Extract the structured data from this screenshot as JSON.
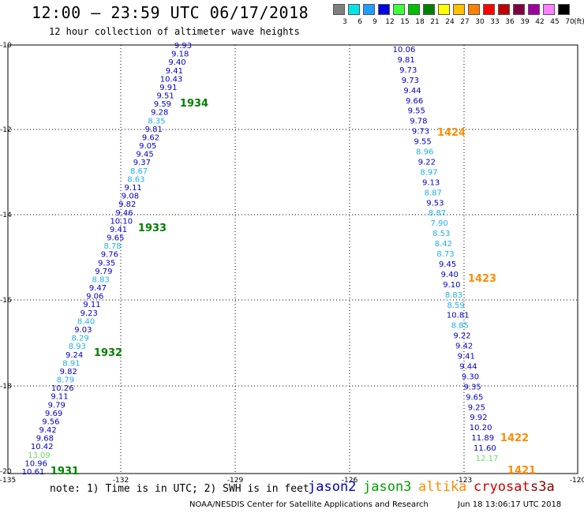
{
  "header": {
    "title": "12:00 – 23:59 UTC 06/17/2018",
    "subtitle": "12 hour collection of altimeter wave heights"
  },
  "colorbar": {
    "unit_label": "(ft)",
    "labels": [
      "3",
      "6",
      "9",
      "12",
      "15",
      "18",
      "21",
      "24",
      "27",
      "30",
      "33",
      "36",
      "39",
      "42",
      "45",
      "70"
    ],
    "colors": [
      "#7f7f7f",
      "#00e5e5",
      "#1f9fff",
      "#0000e0",
      "#3fff3f",
      "#00c000",
      "#008000",
      "#ffff00",
      "#ffc000",
      "#ff8000",
      "#ff0000",
      "#c00000",
      "#800040",
      "#a000a0",
      "#ff80ff",
      "#000000"
    ]
  },
  "axes": {
    "x_ticks": [
      "-135",
      "-132",
      "-129",
      "-126",
      "-123",
      "-120"
    ],
    "y_ticks": [
      "-10",
      "-12",
      "-14",
      "-16",
      "-18",
      "-20"
    ]
  },
  "series_colors": {
    "blue": "#0000c8",
    "cyan": "#1fb0e8",
    "green": "#008000",
    "lightgreen": "#66dd66",
    "orange": "#ff8c00"
  },
  "tracks": [
    {
      "name": "left-track",
      "points": [
        [
          "9.93",
          "blue"
        ],
        [
          "9.18",
          "blue"
        ],
        [
          "9.40",
          "blue"
        ],
        [
          "9.41",
          "blue"
        ],
        [
          "10.43",
          "blue"
        ],
        [
          "9.91",
          "blue"
        ],
        [
          "9.51",
          "blue"
        ],
        [
          "9.59",
          "blue"
        ],
        [
          "9.28",
          "blue"
        ],
        [
          "8.35",
          "cyan"
        ],
        [
          "9.81",
          "blue"
        ],
        [
          "9.62",
          "blue"
        ],
        [
          "9.05",
          "blue"
        ],
        [
          "9.45",
          "blue"
        ],
        [
          "9.37",
          "blue"
        ],
        [
          "8.67",
          "cyan"
        ],
        [
          "8.63",
          "cyan"
        ],
        [
          "9.11",
          "blue"
        ],
        [
          "9.08",
          "blue"
        ],
        [
          "9.82",
          "blue"
        ],
        [
          "9.46",
          "blue"
        ],
        [
          "10.10",
          "blue"
        ],
        [
          "9.41",
          "blue"
        ],
        [
          "9.65",
          "blue"
        ],
        [
          "8.78",
          "cyan"
        ],
        [
          "9.76",
          "blue"
        ],
        [
          "9.35",
          "blue"
        ],
        [
          "9.79",
          "blue"
        ],
        [
          "8.83",
          "cyan"
        ],
        [
          "9.47",
          "blue"
        ],
        [
          "9.06",
          "blue"
        ],
        [
          "9.11",
          "blue"
        ],
        [
          "9.23",
          "blue"
        ],
        [
          "8.40",
          "cyan"
        ],
        [
          "9.03",
          "blue"
        ],
        [
          "8.29",
          "cyan"
        ],
        [
          "8.93",
          "cyan"
        ],
        [
          "9.24",
          "blue"
        ],
        [
          "8.91",
          "cyan"
        ],
        [
          "9.82",
          "blue"
        ],
        [
          "8.79",
          "cyan"
        ],
        [
          "10.26",
          "blue"
        ],
        [
          "9.11",
          "blue"
        ],
        [
          "9.79",
          "blue"
        ],
        [
          "9.69",
          "blue"
        ],
        [
          "9.56",
          "blue"
        ],
        [
          "9.42",
          "blue"
        ],
        [
          "9.68",
          "blue"
        ],
        [
          "10.42",
          "blue"
        ],
        [
          "13.09",
          "lightgreen"
        ],
        [
          "10.96",
          "blue"
        ],
        [
          "10.61",
          "blue"
        ]
      ]
    },
    {
      "name": "right-track",
      "points": [
        [
          "10.06",
          "blue"
        ],
        [
          "9.81",
          "blue"
        ],
        [
          "9.73",
          "blue"
        ],
        [
          "9.73",
          "blue"
        ],
        [
          "9.44",
          "blue"
        ],
        [
          "9.66",
          "blue"
        ],
        [
          "9.55",
          "blue"
        ],
        [
          "9.78",
          "blue"
        ],
        [
          "9.73",
          "blue"
        ],
        [
          "9.55",
          "blue"
        ],
        [
          "8.96",
          "cyan"
        ],
        [
          "9.22",
          "blue"
        ],
        [
          "8.97",
          "cyan"
        ],
        [
          "9.13",
          "blue"
        ],
        [
          "8.87",
          "cyan"
        ],
        [
          "9.53",
          "blue"
        ],
        [
          "8.87",
          "cyan"
        ],
        [
          "7.90",
          "cyan"
        ],
        [
          "8.53",
          "cyan"
        ],
        [
          "8.42",
          "cyan"
        ],
        [
          "8.73",
          "cyan"
        ],
        [
          "9.45",
          "blue"
        ],
        [
          "9.40",
          "blue"
        ],
        [
          "9.10",
          "blue"
        ],
        [
          "8.83",
          "cyan"
        ],
        [
          "8.59",
          "cyan"
        ],
        [
          "10.81",
          "blue"
        ],
        [
          "8.85",
          "cyan"
        ],
        [
          "9.22",
          "blue"
        ],
        [
          "9.42",
          "blue"
        ],
        [
          "9.41",
          "blue"
        ],
        [
          "9.44",
          "blue"
        ],
        [
          "9.30",
          "blue"
        ],
        [
          "9.35",
          "blue"
        ],
        [
          "9.65",
          "blue"
        ],
        [
          "9.25",
          "blue"
        ],
        [
          "9.92",
          "blue"
        ],
        [
          "10.20",
          "blue"
        ],
        [
          "11.89",
          "blue"
        ],
        [
          "11.60",
          "blue"
        ],
        [
          "12.17",
          "lightgreen"
        ]
      ]
    }
  ],
  "time_labels": [
    {
      "text": "1934",
      "color": "green"
    },
    {
      "text": "1933",
      "color": "green"
    },
    {
      "text": "1932",
      "color": "green"
    },
    {
      "text": "1931",
      "color": "green"
    },
    {
      "text": "1424",
      "color": "orange"
    },
    {
      "text": "1423",
      "color": "orange"
    },
    {
      "text": "1422",
      "color": "orange"
    },
    {
      "text": "1421",
      "color": "orange"
    }
  ],
  "footer": {
    "note": "note: 1) Time is in UTC; 2) SWH is in feet",
    "satellites": [
      {
        "name": "jason2",
        "color": "#0000c8"
      },
      {
        "name": "jason3",
        "color": "#00a000"
      },
      {
        "name": "altika",
        "color": "#ff8c00"
      },
      {
        "name": "cryosat",
        "color": "#d00000"
      },
      {
        "name": "s3a",
        "color": "#8b0000"
      }
    ],
    "credit": "NOAA/NESDIS Center for Satellite Applications and Research",
    "timestamp": "Jun 18 13:06:17 UTC 2018"
  }
}
